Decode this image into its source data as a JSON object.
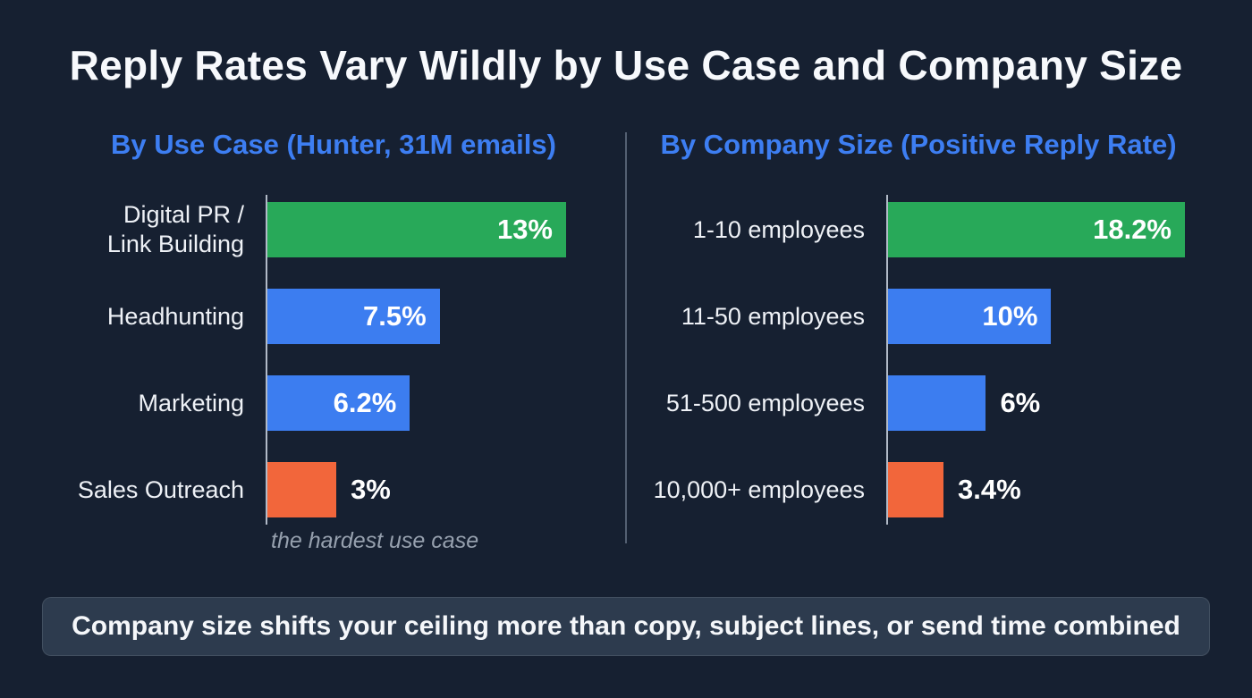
{
  "title": "Reply Rates Vary Wildly by Use Case and Company Size",
  "footer": {
    "text": "Company size shifts your ceiling more than copy, subject lines, or send time combined"
  },
  "colors": {
    "background": "#162031",
    "heading_blue": "#3d7ef2",
    "bar_green": "#28a959",
    "bar_blue": "#3c7df0",
    "bar_orange": "#f2663b",
    "footer_bg": "#2d3b4e"
  },
  "chart_data": [
    {
      "type": "bar",
      "title": "By Use Case (Hunter, 31M emails)",
      "categories": [
        "Digital PR /\nLink Building",
        "Headhunting",
        "Marketing",
        "Sales Outreach"
      ],
      "values": [
        13,
        7.5,
        6.2,
        3
      ],
      "value_labels": [
        "13%",
        "7.5%",
        "6.2%",
        "3%"
      ],
      "bar_colors": [
        "#28a959",
        "#3c7df0",
        "#3c7df0",
        "#f2663b"
      ],
      "label_inside": [
        true,
        true,
        true,
        false
      ],
      "xlim": [
        0,
        13
      ],
      "annotation": "the hardest use case",
      "orientation": "horizontal",
      "legend": "none",
      "grid": false
    },
    {
      "type": "bar",
      "title": "By Company Size (Positive Reply Rate)",
      "categories": [
        "1-10 employees",
        "11-50 employees",
        "51-500 employees",
        "10,000+ employees"
      ],
      "values": [
        18.2,
        10,
        6,
        3.4
      ],
      "value_labels": [
        "18.2%",
        "10%",
        "6%",
        "3.4%"
      ],
      "bar_colors": [
        "#28a959",
        "#3c7df0",
        "#3c7df0",
        "#f2663b"
      ],
      "label_inside": [
        true,
        true,
        false,
        false
      ],
      "xlim": [
        0,
        18.2
      ],
      "annotation": "",
      "orientation": "horizontal",
      "legend": "none",
      "grid": false
    }
  ]
}
